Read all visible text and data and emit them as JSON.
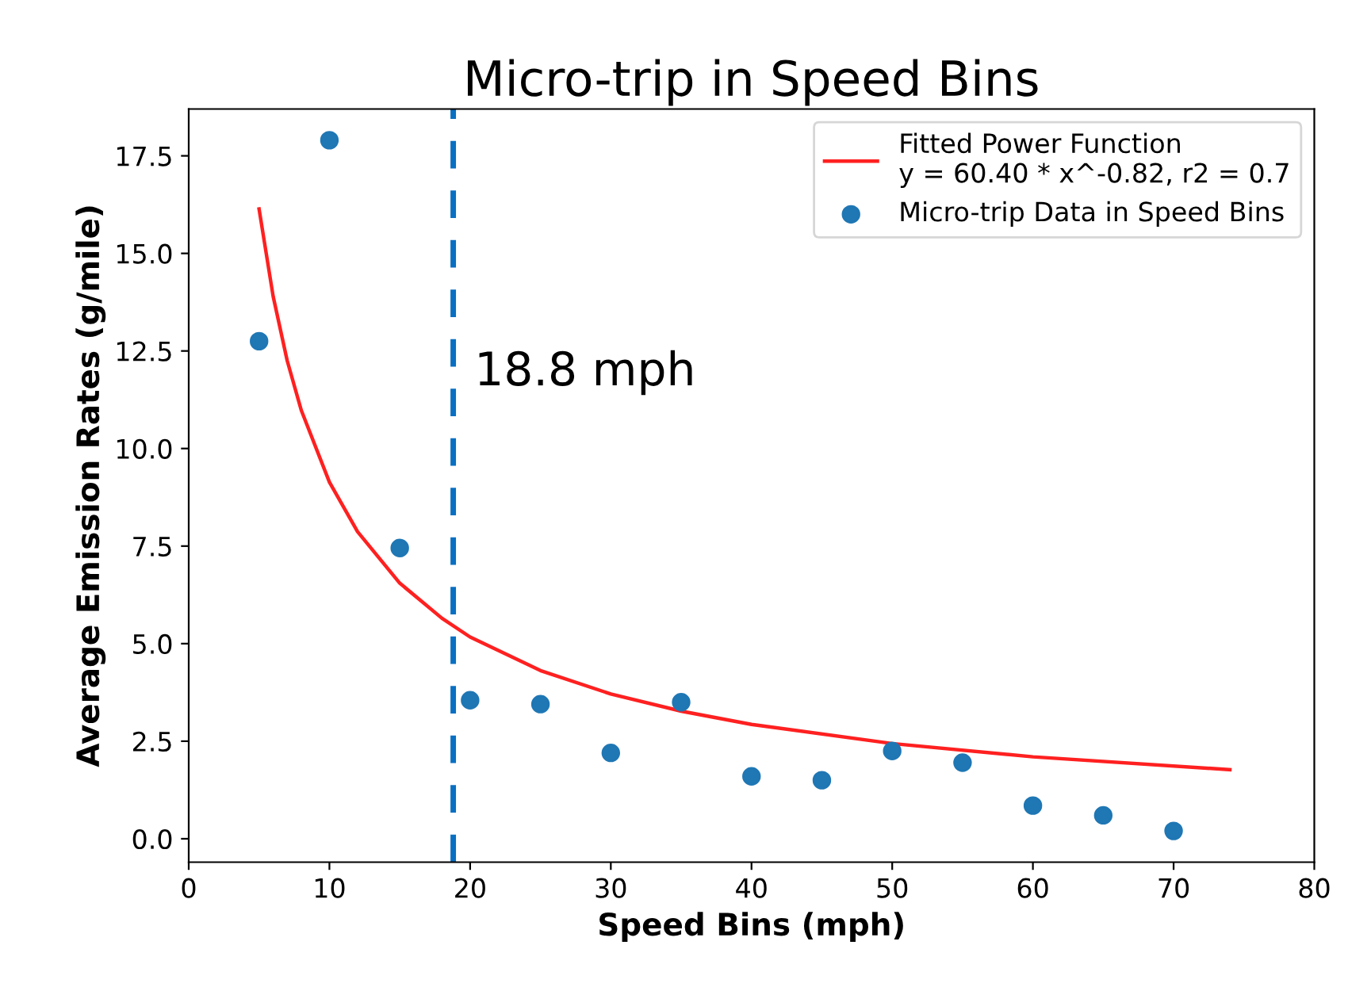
{
  "chart_data": {
    "type": "scatter",
    "title": "Micro-trip in Speed Bins",
    "xlabel": "Speed Bins (mph)",
    "ylabel": "Average Emission Rates (g/mile)",
    "series": [
      {
        "name": "Fitted Power Function\ny = 60.40 * x^-0.82, r2 = 0.7",
        "type": "line",
        "marker": "none",
        "color": "#ff2020",
        "x": [
          5,
          6,
          7,
          8,
          10,
          12,
          15,
          18,
          20,
          25,
          30,
          35,
          40,
          50,
          60,
          74
        ],
        "values": [
          16.14,
          13.9,
          12.25,
          10.98,
          9.14,
          7.87,
          6.55,
          5.65,
          5.17,
          4.31,
          3.71,
          3.27,
          2.93,
          2.44,
          2.1,
          1.77
        ]
      },
      {
        "name": "Micro-trip Data in Speed Bins",
        "marker": "circle",
        "color": "#1f77b4",
        "x": [
          5,
          10,
          15,
          20,
          25,
          30,
          35,
          40,
          45,
          50,
          55,
          60,
          65,
          70
        ],
        "values": [
          12.75,
          17.9,
          7.45,
          3.55,
          3.45,
          2.2,
          3.5,
          1.6,
          1.5,
          2.25,
          1.95,
          0.85,
          0.6,
          0.2
        ]
      }
    ],
    "ref_lines": [
      {
        "axis": "x",
        "value": 18.8,
        "label": "18.8 mph",
        "color": "#0a6fc2",
        "line_style": "dashed"
      }
    ],
    "xlim": [
      0,
      80
    ],
    "xticks": [
      0,
      10,
      20,
      30,
      40,
      50,
      60,
      70,
      80
    ],
    "ylim": [
      -0.6,
      18.7
    ],
    "yticks": [
      {
        "value": 0,
        "label": "0.0"
      },
      {
        "value": 2.5,
        "label": "2.5"
      },
      {
        "value": 5,
        "label": "5.0"
      },
      {
        "value": 7.5,
        "label": "7.5"
      },
      {
        "value": 10,
        "label": "10.0"
      },
      {
        "value": 12.5,
        "label": "12.5"
      },
      {
        "value": 15,
        "label": "15.0"
      },
      {
        "value": 17.5,
        "label": "17.5"
      }
    ],
    "legend": "top right",
    "grid": false
  }
}
